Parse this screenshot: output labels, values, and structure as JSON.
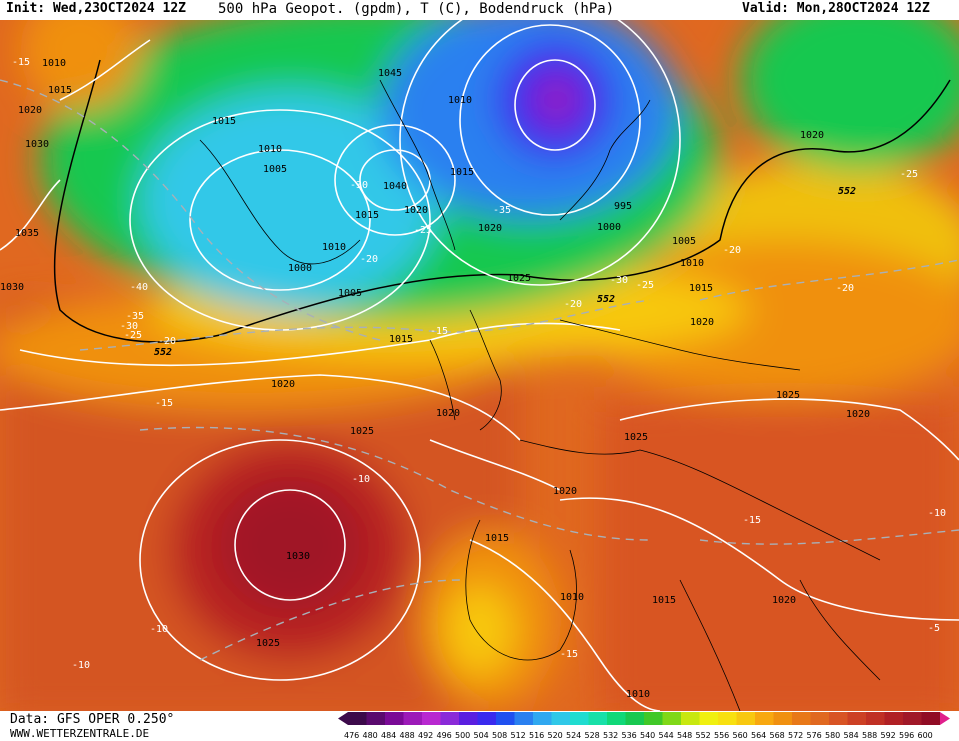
{
  "header": {
    "init": "Init: Wed,23OCT2024 12Z",
    "title": "500 hPa Geopot. (gpdm), T (C), Bodendruck (hPa)",
    "valid": "Valid: Mon,28OCT2024 12Z"
  },
  "footer": {
    "data_source": "Data: GFS OPER 0.250°",
    "website": "WWW.WETTERZENTRALE.DE"
  },
  "legend": {
    "labels": [
      "476",
      "480",
      "484",
      "488",
      "492",
      "496",
      "500",
      "504",
      "508",
      "512",
      "516",
      "520",
      "524",
      "528",
      "532",
      "536",
      "540",
      "544",
      "548",
      "552",
      "556",
      "560",
      "564",
      "568",
      "572",
      "576",
      "580",
      "584",
      "588",
      "592",
      "596",
      "600"
    ],
    "colors": [
      "#3c0a4a",
      "#5a0a6e",
      "#7a0a96",
      "#9c1ab8",
      "#b828d0",
      "#8a2ad8",
      "#5a1ee0",
      "#3a2aee",
      "#2050f0",
      "#2a80f0",
      "#30a8f0",
      "#30c8e8",
      "#20dcd0",
      "#18e0a8",
      "#10d878",
      "#18c850",
      "#40c828",
      "#80d818",
      "#c8e810",
      "#f0f010",
      "#f8e010",
      "#f8c810",
      "#f8a810",
      "#f09010",
      "#e87818",
      "#e06820",
      "#d85424",
      "#cc4024",
      "#c03024",
      "#b02024",
      "#a01828",
      "#900c24"
    ]
  },
  "map_labels": {
    "pressure": [
      "1010",
      "1015",
      "1020",
      "1030",
      "1035",
      "1030",
      "1005",
      "1000",
      "1015",
      "1010",
      "1005",
      "1010",
      "1040",
      "1045",
      "1015",
      "1020",
      "1010",
      "1025",
      "1020",
      "1015",
      "995",
      "1000",
      "1005",
      "1010",
      "1015",
      "1020",
      "1020",
      "1015",
      "1020",
      "1025",
      "1025",
      "1020",
      "1025",
      "1020",
      "1030",
      "1025",
      "1015",
      "1010",
      "1015",
      "1020",
      "1010",
      "1020"
    ],
    "temperature": [
      "-15",
      "-40",
      "-35",
      "-30",
      "-25",
      "-20",
      "-30",
      "-20",
      "-35",
      "-25",
      "-20",
      "-30",
      "-25",
      "-25",
      "-20",
      "-20",
      "-15",
      "-15",
      "-10",
      "-10",
      "-10",
      "-15",
      "-15",
      "-10",
      "-5"
    ],
    "height_552": [
      "552",
      "552",
      "552"
    ]
  }
}
